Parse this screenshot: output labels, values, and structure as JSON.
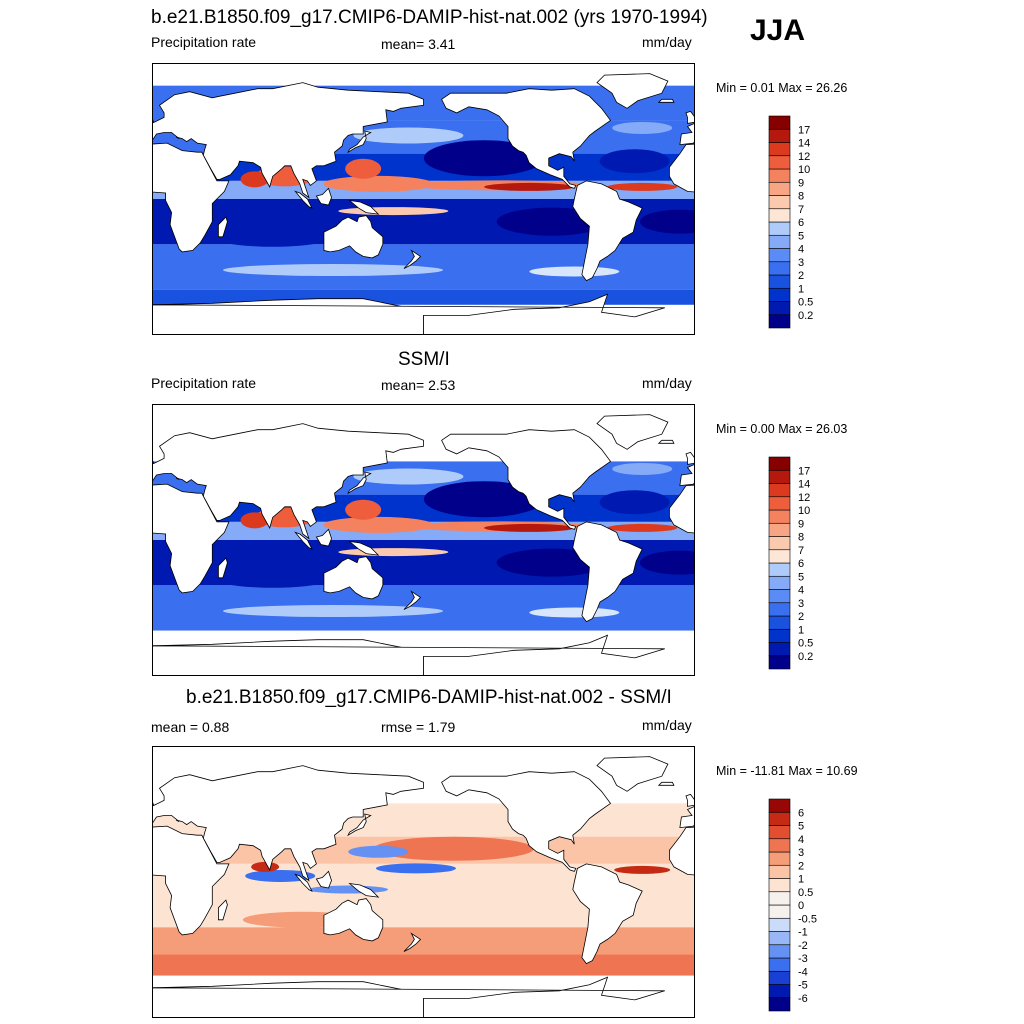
{
  "season": "JJA",
  "colors": {
    "abs": [
      "#00008a",
      "#0019b0",
      "#0033cc",
      "#1a52e0",
      "#3a6ff0",
      "#5b8cf5",
      "#85aaf7",
      "#aecbf9",
      "#d8e6fb",
      "#fde6d5",
      "#fbc9ad",
      "#f8a585",
      "#f4825f",
      "#ef5e3c",
      "#dc3a1e",
      "#b5180c",
      "#870000"
    ],
    "diff": [
      "#00008a",
      "#0019b0",
      "#1a3fd5",
      "#3a6ff0",
      "#6591f3",
      "#99b7f6",
      "#cbdbfa",
      "#f7f1ee",
      "#fde3d1",
      "#fbc4a6",
      "#f59c78",
      "#ef7452",
      "#e24f30",
      "#c52a14",
      "#960705"
    ],
    "land": "#ffffff",
    "coast": "#000000"
  },
  "chart_data": [
    {
      "type": "heatmap",
      "title": "b.e21.B1850.f09_g17.CMIP6-DAMIP-hist-nat.002 (yrs 1970-1994)",
      "left_label": "Precipitation rate",
      "center_label": "mean=   3.41",
      "units": "mm/day",
      "minmax": "Min =   0.01 Max =  26.26",
      "colorbar_levels": [
        "0.2",
        "0.5",
        "1",
        "2",
        "3",
        "4",
        "5",
        "6",
        "7",
        "8",
        "9",
        "10",
        "12",
        "14",
        "17"
      ],
      "colorbar_num_colors": 16
    },
    {
      "type": "heatmap",
      "title": "SSM/I",
      "left_label": "Precipitation rate",
      "center_label": "mean=   2.53",
      "units": "mm/day",
      "minmax": "Min =   0.00 Max =  26.03",
      "colorbar_levels": [
        "0.2",
        "0.5",
        "1",
        "2",
        "3",
        "4",
        "5",
        "6",
        "7",
        "8",
        "9",
        "10",
        "12",
        "14",
        "17"
      ],
      "colorbar_num_colors": 16
    },
    {
      "type": "heatmap",
      "title": "b.e21.B1850.f09_g17.CMIP6-DAMIP-hist-nat.002 - SSM/I",
      "left_label": "mean =   0.88",
      "center_label": "rmse =   1.79",
      "units": "mm/day",
      "minmax": "Min = -11.81 Max =  10.69",
      "colorbar_levels": [
        "-6",
        "-5",
        "-4",
        "-3",
        "-2",
        "-1",
        "-0.5",
        "0",
        "0.5",
        "1",
        "2",
        "3",
        "4",
        "5",
        "6"
      ],
      "colorbar_num_colors": 16
    }
  ]
}
